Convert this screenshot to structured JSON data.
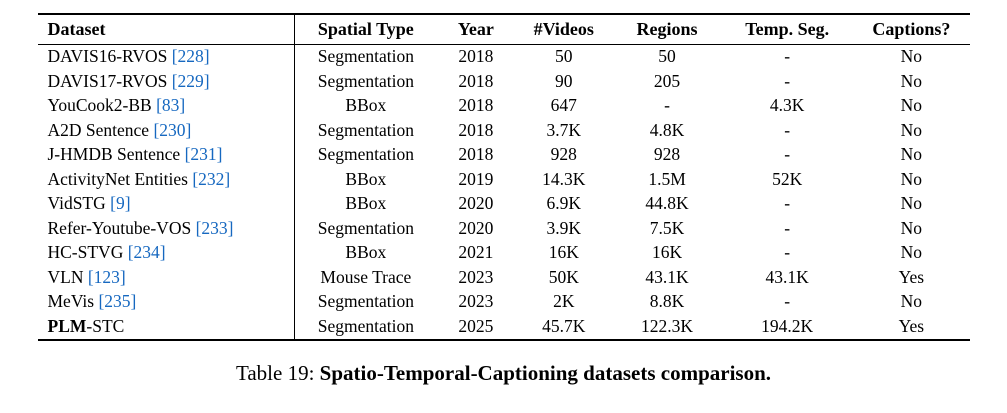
{
  "colors": {
    "citation": "#1668c0",
    "text": "#000000",
    "background": "#ffffff"
  },
  "table": {
    "headers": [
      "Dataset",
      "Spatial Type",
      "Year",
      "#Videos",
      "Regions",
      "Temp. Seg.",
      "Captions?"
    ],
    "rows": [
      {
        "name_parts": [
          {
            "text": "DAVIS16-RVOS",
            "bold": false
          }
        ],
        "cite": "[228]",
        "spatial_type": "Segmentation",
        "year": "2018",
        "videos": "50",
        "regions": "50",
        "temp_seg": "-",
        "captions": "No"
      },
      {
        "name_parts": [
          {
            "text": "DAVIS17-RVOS",
            "bold": false
          }
        ],
        "cite": "[229]",
        "spatial_type": "Segmentation",
        "year": "2018",
        "videos": "90",
        "regions": "205",
        "temp_seg": "-",
        "captions": "No"
      },
      {
        "name_parts": [
          {
            "text": "YouCook2-BB",
            "bold": false
          }
        ],
        "cite": "[83]",
        "spatial_type": "BBox",
        "year": "2018",
        "videos": "647",
        "regions": "-",
        "temp_seg": "4.3K",
        "captions": "No"
      },
      {
        "name_parts": [
          {
            "text": "A2D Sentence",
            "bold": false
          }
        ],
        "cite": "[230]",
        "spatial_type": "Segmentation",
        "year": "2018",
        "videos": "3.7K",
        "regions": "4.8K",
        "temp_seg": "-",
        "captions": "No"
      },
      {
        "name_parts": [
          {
            "text": "J-HMDB Sentence",
            "bold": false
          }
        ],
        "cite": "[231]",
        "spatial_type": "Segmentation",
        "year": "2018",
        "videos": "928",
        "regions": "928",
        "temp_seg": "-",
        "captions": "No"
      },
      {
        "name_parts": [
          {
            "text": "ActivityNet Entities",
            "bold": false
          }
        ],
        "cite": "[232]",
        "spatial_type": "BBox",
        "year": "2019",
        "videos": "14.3K",
        "regions": "1.5M",
        "temp_seg": "52K",
        "captions": "No"
      },
      {
        "name_parts": [
          {
            "text": "VidSTG",
            "bold": false
          }
        ],
        "cite": "[9]",
        "spatial_type": "BBox",
        "year": "2020",
        "videos": "6.9K",
        "regions": "44.8K",
        "temp_seg": "-",
        "captions": "No"
      },
      {
        "name_parts": [
          {
            "text": "Refer-Youtube-VOS",
            "bold": false
          }
        ],
        "cite": "[233]",
        "spatial_type": "Segmentation",
        "year": "2020",
        "videos": "3.9K",
        "regions": "7.5K",
        "temp_seg": "-",
        "captions": "No"
      },
      {
        "name_parts": [
          {
            "text": "HC-STVG",
            "bold": false
          }
        ],
        "cite": "[234]",
        "spatial_type": "BBox",
        "year": "2021",
        "videos": "16K",
        "regions": "16K",
        "temp_seg": "-",
        "captions": "No"
      },
      {
        "name_parts": [
          {
            "text": "VLN",
            "bold": false
          }
        ],
        "cite": "[123]",
        "spatial_type": "Mouse Trace",
        "year": "2023",
        "videos": "50K",
        "regions": "43.1K",
        "temp_seg": "43.1K",
        "captions": "Yes"
      },
      {
        "name_parts": [
          {
            "text": "MeVis",
            "bold": false
          }
        ],
        "cite": "[235]",
        "spatial_type": "Segmentation",
        "year": "2023",
        "videos": "2K",
        "regions": "8.8K",
        "temp_seg": "-",
        "captions": "No"
      },
      {
        "name_parts": [
          {
            "text": "PLM",
            "bold": true
          },
          {
            "text": "-STC",
            "bold": false
          }
        ],
        "cite": "",
        "spatial_type": "Segmentation",
        "year": "2025",
        "videos": "45.7K",
        "regions": "122.3K",
        "temp_seg": "194.2K",
        "captions": "Yes"
      }
    ]
  },
  "caption": {
    "prefix": "Table 19: ",
    "title": "Spatio-Temporal-Captioning datasets comparison."
  }
}
